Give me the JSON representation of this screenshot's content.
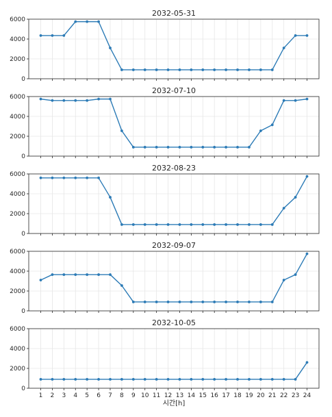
{
  "figure": {
    "colors": {
      "line": "#2c7bb6",
      "grid": "#e6e6e6",
      "axis": "#262626"
    }
  },
  "chart_data": {
    "type": "line",
    "x": [
      1,
      2,
      3,
      4,
      5,
      6,
      7,
      8,
      9,
      10,
      11,
      12,
      13,
      14,
      15,
      16,
      17,
      18,
      19,
      20,
      21,
      22,
      23,
      24
    ],
    "xlabel": "시간[h]",
    "ylim": [
      0,
      6000
    ],
    "yticks": [
      0,
      2000,
      4000,
      6000
    ],
    "grid": true,
    "panels": [
      {
        "title": "2032-05-31",
        "values": [
          4350,
          4350,
          4350,
          5750,
          5750,
          5750,
          3100,
          900,
          900,
          900,
          900,
          900,
          900,
          900,
          900,
          900,
          900,
          900,
          900,
          900,
          900,
          3100,
          4350,
          4350
        ]
      },
      {
        "title": "2032-07-10",
        "values": [
          5750,
          5600,
          5600,
          5600,
          5600,
          5750,
          5750,
          2550,
          900,
          900,
          900,
          900,
          900,
          900,
          900,
          900,
          900,
          900,
          900,
          2550,
          3150,
          5600,
          5600,
          5750
        ]
      },
      {
        "title": "2032-08-23",
        "values": [
          5600,
          5600,
          5600,
          5600,
          5600,
          5600,
          3650,
          900,
          900,
          900,
          900,
          900,
          900,
          900,
          900,
          900,
          900,
          900,
          900,
          900,
          900,
          2550,
          3650,
          5750
        ]
      },
      {
        "title": "2032-09-07",
        "values": [
          3100,
          3650,
          3650,
          3650,
          3650,
          3650,
          3650,
          2550,
          900,
          900,
          900,
          900,
          900,
          900,
          900,
          900,
          900,
          900,
          900,
          900,
          900,
          3100,
          3650,
          5750
        ]
      },
      {
        "title": "2032-10-05",
        "values": [
          900,
          900,
          900,
          900,
          900,
          900,
          900,
          900,
          900,
          900,
          900,
          900,
          900,
          900,
          900,
          900,
          900,
          900,
          900,
          900,
          900,
          900,
          900,
          2600
        ]
      }
    ]
  }
}
